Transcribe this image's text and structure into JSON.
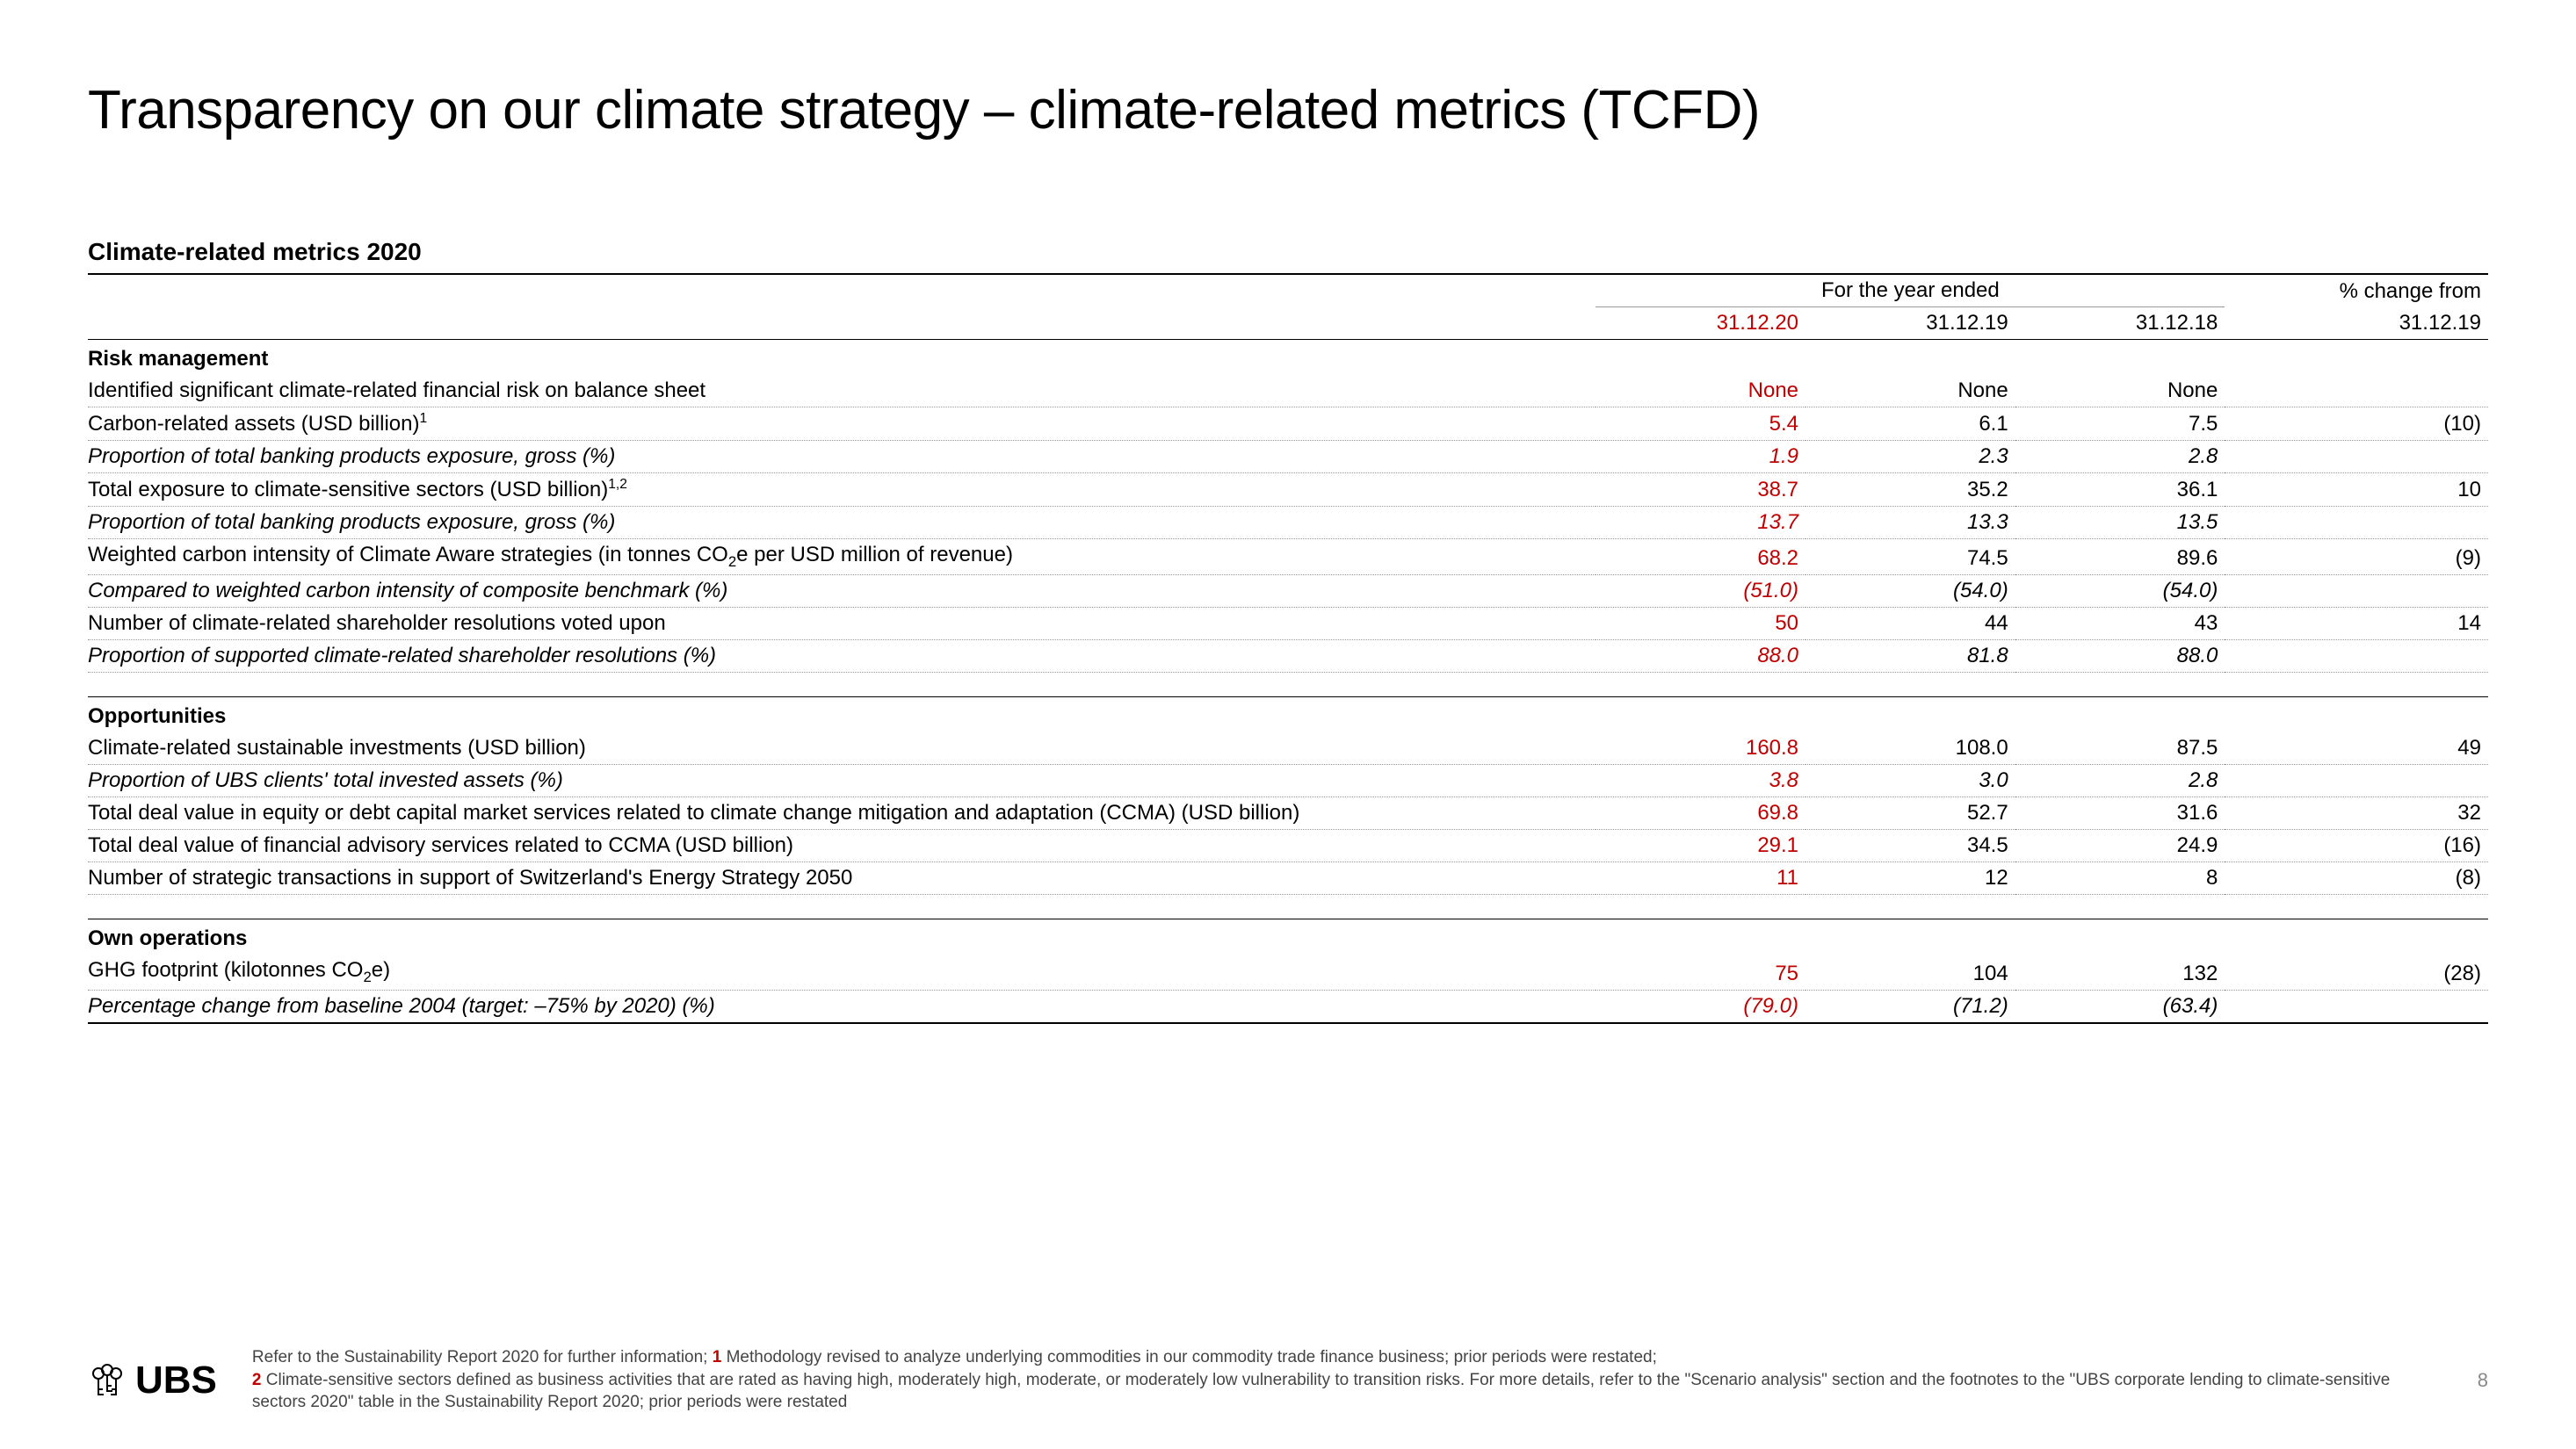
{
  "title": "Transparency on our climate strategy – climate-related metrics (TCFD)",
  "table_title": "Climate-related metrics 2020",
  "headers": {
    "spanner": "For the year ended",
    "change_label": "% change from",
    "col_2020": "31.12.20",
    "col_2019": "31.12.19",
    "col_2018": "31.12.18",
    "col_change": "31.12.19"
  },
  "sections": [
    {
      "name": "Risk management",
      "rows": [
        {
          "label": "Identified significant climate-related financial risk on balance sheet",
          "v20": "None",
          "v19": "None",
          "v18": "None",
          "chg": "",
          "italic": false,
          "indent": false
        },
        {
          "label": "Carbon-related assets (USD billion)",
          "sup": "1",
          "v20": "5.4",
          "v19": "6.1",
          "v18": "7.5",
          "chg": "(10)",
          "italic": false,
          "indent": false
        },
        {
          "label": "Proportion of total banking products exposure, gross (%)",
          "v20": "1.9",
          "v19": "2.3",
          "v18": "2.8",
          "chg": "",
          "italic": true,
          "indent": true
        },
        {
          "label": "Total exposure to climate-sensitive sectors (USD billion)",
          "sup": "1,2",
          "v20": "38.7",
          "v19": "35.2",
          "v18": "36.1",
          "chg": "10",
          "italic": false,
          "indent": false
        },
        {
          "label": "Proportion of total banking products exposure, gross (%)",
          "v20": "13.7",
          "v19": "13.3",
          "v18": "13.5",
          "chg": "",
          "italic": true,
          "indent": true
        },
        {
          "label": "Weighted carbon intensity of Climate Aware strategies (in tonnes CO",
          "co2": "2",
          "label_tail": "e per USD million of revenue)",
          "v20": "68.2",
          "v19": "74.5",
          "v18": "89.6",
          "chg": "(9)",
          "italic": false,
          "indent": false
        },
        {
          "label": "Compared to weighted carbon intensity of composite benchmark (%)",
          "v20": "(51.0)",
          "v19": "(54.0)",
          "v18": "(54.0)",
          "chg": "",
          "italic": true,
          "indent": true
        },
        {
          "label": "Number of climate-related shareholder resolutions voted upon",
          "v20": "50",
          "v19": "44",
          "v18": "43",
          "chg": "14",
          "italic": false,
          "indent": false
        },
        {
          "label": "Proportion of supported climate-related shareholder resolutions (%)",
          "v20": "88.0",
          "v19": "81.8",
          "v18": "88.0",
          "chg": "",
          "italic": true,
          "indent": true
        }
      ]
    },
    {
      "name": "Opportunities",
      "rows": [
        {
          "label": "Climate-related sustainable investments (USD billion)",
          "v20": "160.8",
          "v19": "108.0",
          "v18": "87.5",
          "chg": "49",
          "italic": false,
          "indent": false
        },
        {
          "label": "Proportion of UBS clients' total invested assets (%)",
          "v20": "3.8",
          "v19": "3.0",
          "v18": "2.8",
          "chg": "",
          "italic": true,
          "indent": true
        },
        {
          "label": "Total deal value in equity or debt capital market services related to climate change mitigation and adaptation (CCMA) (USD billion)",
          "v20": "69.8",
          "v19": "52.7",
          "v18": "31.6",
          "chg": "32",
          "italic": false,
          "indent": false
        },
        {
          "label": "Total deal value of financial advisory services related to CCMA (USD billion)",
          "v20": "29.1",
          "v19": "34.5",
          "v18": "24.9",
          "chg": "(16)",
          "italic": false,
          "indent": false
        },
        {
          "label": "Number of strategic transactions in support of Switzerland's Energy Strategy 2050",
          "v20": "11",
          "v19": "12",
          "v18": "8",
          "chg": "(8)",
          "italic": false,
          "indent": false
        }
      ]
    },
    {
      "name": "Own operations",
      "rows": [
        {
          "label": "GHG footprint (kilotonnes CO",
          "co2": "2",
          "label_tail": "e)",
          "v20": "75",
          "v19": "104",
          "v18": "132",
          "chg": "(28)",
          "italic": false,
          "indent": false
        },
        {
          "label": "Percentage change from baseline 2004 (target: –75% by 2020) (%)",
          "v20": "(79.0)",
          "v19": "(71.2)",
          "v18": "(63.4)",
          "chg": "",
          "italic": true,
          "indent": true,
          "last": true
        }
      ]
    }
  ],
  "footer": {
    "logo_text": "UBS",
    "note_intro": "Refer to the Sustainability Report 2020 for further information; ",
    "note_1_marker": "1",
    "note_1": " Methodology revised to analyze underlying commodities in our commodity trade finance business; prior periods were restated; ",
    "note_2_marker": "2",
    "note_2": " Climate-sensitive sectors defined as business activities that are rated as having high, moderately high, moderate, or moderately low vulnerability to transition risks. For more details, refer to the \"Scenario analysis\" section and the footnotes to the \"UBS corporate lending to climate-sensitive sectors 2020\" table in the Sustainability Report 2020; prior periods were restated",
    "page": "8"
  },
  "colors": {
    "accent_red": "#c00000",
    "text": "#000000",
    "dotted": "#999999",
    "footnote": "#444444"
  }
}
